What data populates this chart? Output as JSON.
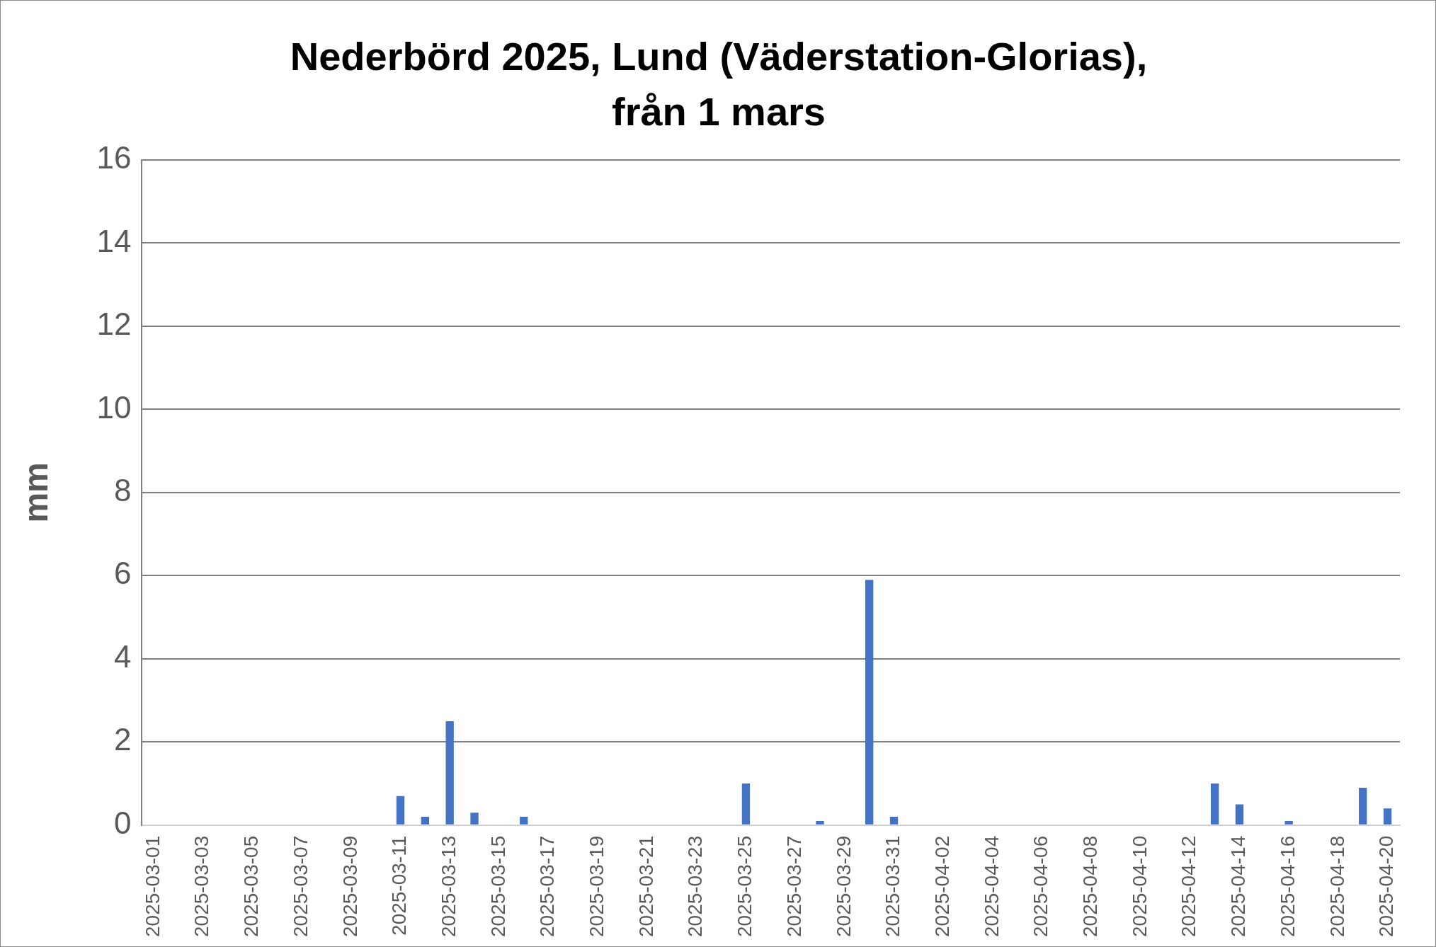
{
  "chart_data": {
    "type": "bar",
    "title": "Nederbörd 2025, Lund (Väderstation-Glorias), från 1 mars",
    "ylabel": "mm",
    "categories": [
      "2025-03-01",
      null,
      "2025-03-03",
      null,
      "2025-03-05",
      null,
      "2025-03-07",
      null,
      "2025-03-09",
      null,
      "2025-03-11",
      null,
      "2025-03-13",
      null,
      "2025-03-15",
      null,
      "2025-03-17",
      null,
      "2025-03-19",
      null,
      "2025-03-21",
      null,
      "2025-03-23",
      null,
      "2025-03-25",
      null,
      "2025-03-27",
      null,
      "2025-03-29",
      null,
      "2025-03-31",
      null,
      "2025-04-02",
      null,
      "2025-04-04",
      null,
      "2025-04-06",
      null,
      "2025-04-08",
      null,
      "2025-04-10",
      null,
      "2025-04-12",
      null,
      "2025-04-14",
      null,
      "2025-04-16",
      null,
      "2025-04-18",
      null,
      "2025-04-20"
    ],
    "values": [
      0,
      0,
      0,
      0,
      0,
      0,
      0,
      0,
      0,
      0,
      0.7,
      0.2,
      2.5,
      0.3,
      0,
      0.2,
      0,
      0,
      0,
      0,
      0,
      0,
      0,
      0,
      1.0,
      0,
      0,
      0.1,
      0,
      5.9,
      0.2,
      0,
      0,
      0,
      0,
      0,
      0,
      0,
      0,
      0,
      0,
      0,
      0,
      1.0,
      0.5,
      0,
      0.1,
      0,
      0,
      0.9,
      0.4
    ],
    "color": "#4472c4",
    "ylim": [
      0,
      16
    ],
    "yticks": [
      0,
      2,
      4,
      6,
      8,
      10,
      12,
      14,
      16
    ],
    "grid": "y",
    "legend": false
  }
}
